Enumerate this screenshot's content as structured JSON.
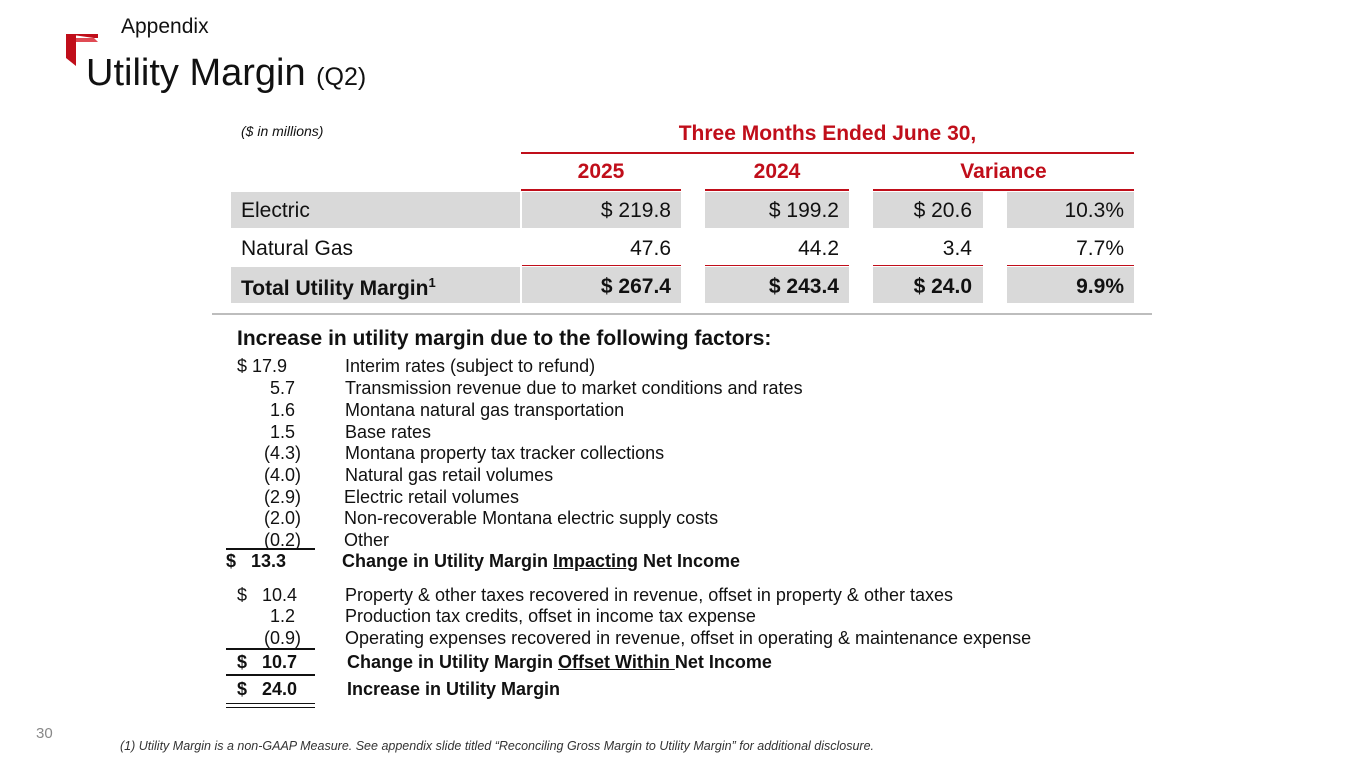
{
  "header": {
    "section": "Appendix",
    "title": "Utility Margin",
    "title_suffix": "(Q2)"
  },
  "table": {
    "units": "($ in millions)",
    "period": "Three Months Ended June 30,",
    "columns": [
      "2025",
      "2024",
      "Variance"
    ],
    "rows": [
      {
        "label": "Electric",
        "sup": "",
        "v2025": "$ 219.8",
        "v2024": "$ 199.2",
        "var_amt": "$ 20.6",
        "var_pct": "10.3%"
      },
      {
        "label": "Natural Gas",
        "sup": "",
        "v2025": "47.6",
        "v2024": "44.2",
        "var_amt": "3.4",
        "var_pct": "7.7%"
      },
      {
        "label": "Total Utility Margin",
        "sup": "1",
        "v2025": "$ 267.4",
        "v2024": "$ 243.4",
        "var_amt": "$ 24.0",
        "var_pct": "9.9%"
      }
    ]
  },
  "factors": {
    "title": "Increase in utility margin due to the following factors:",
    "group1": [
      {
        "amount": "$  17.9",
        "label": "Interim rates (subject to refund)"
      },
      {
        "amount": "5.7",
        "label": "Transmission revenue due to market conditions and rates"
      },
      {
        "amount": "1.6",
        "label": "Montana natural gas transportation"
      },
      {
        "amount": "1.5",
        "label": "Base rates"
      },
      {
        "amount": "(4.3)",
        "label": "Montana property tax tracker collections"
      },
      {
        "amount": "(4.0)",
        "label": "Natural gas retail volumes"
      },
      {
        "amount": "(2.9)",
        "label": "Electric retail volumes"
      },
      {
        "amount": "(2.0)",
        "label": "Non-recoverable Montana electric supply costs"
      },
      {
        "amount": "(0.2)",
        "label": "Other"
      }
    ],
    "subtotal1": {
      "amount": "$   13.3",
      "pre": "Change in Utility Margin ",
      "underlined": "Impacting",
      "post": " Net Income"
    },
    "group2": [
      {
        "amount": "$   10.4",
        "label": "Property & other taxes recovered in revenue, offset in property & other taxes"
      },
      {
        "amount": "1.2",
        "label": "Production tax credits, offset in income tax expense"
      },
      {
        "amount": "(0.9)",
        "label": "Operating expenses recovered in revenue, offset in operating & maintenance expense"
      }
    ],
    "subtotal2": {
      "amount": "$   10.7",
      "pre": "Change in Utility Margin ",
      "underlined": "Offset Within ",
      "post": "Net Income"
    },
    "total": {
      "amount": "$   24.0",
      "label": "Increase in Utility Margin"
    }
  },
  "footer": {
    "page_number": "30",
    "footnote": "(1) Utility Margin is a non-GAAP Measure. See appendix slide titled “Reconciling Gross Margin to Utility Margin” for additional disclosure."
  },
  "colors": {
    "accent": "#c00e1a",
    "row_fill": "#d9d9d9"
  }
}
